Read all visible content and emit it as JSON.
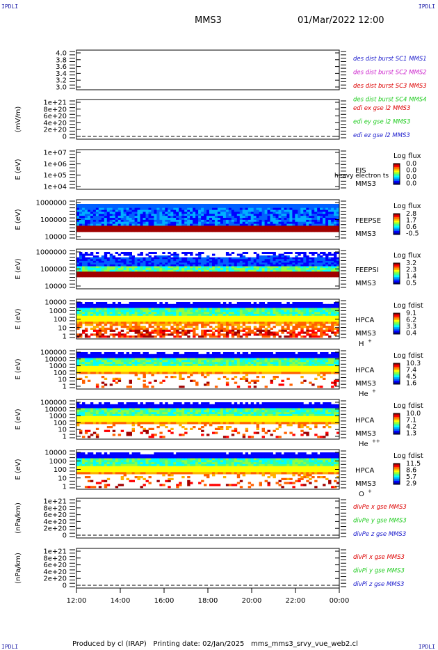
{
  "corner_label": "IPDLI",
  "header": {
    "spacecraft": "MMS3",
    "datetime": "01/Mar/2022 12:00"
  },
  "footer": {
    "produced_by": "Produced by cl (IRAP)",
    "printing_date": "Printing date: 02/Jan/2025",
    "file": "mms_mms3_srvy_vue_web2.cl"
  },
  "colors": {
    "red": "#dd0000",
    "green": "#22cc22",
    "blue": "#1a1acc",
    "magenta": "#cc22cc"
  },
  "chart_data": [
    {
      "type": "line",
      "id": "des-burst",
      "ylabel": "",
      "ylim": [
        2.9,
        4.1
      ],
      "yticks": [
        "4.0",
        "3.8",
        "3.6",
        "3.4",
        "3.2",
        "3.0"
      ],
      "legend": [
        {
          "name": "des dist burst SC1 MMS1",
          "color": "#1a1acc"
        },
        {
          "name": "des dist burst SC2 MMS2",
          "color": "#cc22cc"
        },
        {
          "name": "des dist burst SC3 MMS3",
          "color": "#dd0000"
        },
        {
          "name": "des dist burst SC4 MMS4",
          "color": "#22cc22"
        }
      ]
    },
    {
      "type": "line",
      "id": "edi-e",
      "ylabel": "(mV/m)",
      "ylim": [
        -2e+20,
        1.05e+21
      ],
      "yticks": [
        "1e+21",
        "8e+20",
        "6e+20",
        "4e+20",
        "2e+20",
        "0"
      ],
      "zero_line": true,
      "legend": [
        {
          "name": "edi ex gse l2 MMS3",
          "color": "#dd0000"
        },
        {
          "name": "edi ey gse l2 MMS3",
          "color": "#22cc22"
        },
        {
          "name": "edi ez gse l2 MMS3",
          "color": "#1a1acc"
        }
      ]
    },
    {
      "type": "heatmap",
      "id": "eis",
      "ylabel": "E (eV)",
      "yticks": [
        "1e+07",
        "1e+06",
        "1e+05",
        "1e+04"
      ],
      "instrument": [
        "EIS",
        "MMS3"
      ],
      "overlap_text": "heavy electron ts",
      "cbar_title": "Log flux",
      "cbar_ticks": [
        "0.0",
        "0.0",
        "0.0",
        "0.0"
      ],
      "empty": true
    },
    {
      "type": "heatmap",
      "id": "feepse",
      "ylabel": "E (eV)",
      "yticks": [
        "1000000",
        "100000",
        "10000"
      ],
      "instrument": [
        "FEEPSE",
        "MMS3"
      ],
      "cbar_title": "Log flux",
      "cbar_ticks": [
        "2.8",
        "1.7",
        "0.6",
        "-0.5"
      ]
    },
    {
      "type": "heatmap",
      "id": "feepsi",
      "ylabel": "E (eV)",
      "yticks": [
        "1000000",
        "100000",
        "10000"
      ],
      "instrument": [
        "FEEPSI",
        "MMS3"
      ],
      "cbar_title": "Log flux",
      "cbar_ticks": [
        "3.2",
        "2.3",
        "1.4",
        "0.5"
      ]
    },
    {
      "type": "heatmap",
      "id": "hpca-h",
      "ylabel": "E (eV)",
      "yticks": [
        "10000",
        "1000",
        "100",
        "10",
        "1"
      ],
      "instrument": [
        "HPCA",
        "MMS3"
      ],
      "species": "H",
      "species_sup": "+",
      "cbar_title": "Log fdist",
      "cbar_ticks": [
        "9.1",
        "6.2",
        "3.3",
        "0.4"
      ]
    },
    {
      "type": "heatmap",
      "id": "hpca-he",
      "ylabel": "E (eV)",
      "yticks": [
        "100000",
        "10000",
        "1000",
        "100",
        "10",
        "1"
      ],
      "instrument": [
        "HPCA",
        "MMS3"
      ],
      "species": "He",
      "species_sup": "+",
      "cbar_title": "Log fdist",
      "cbar_ticks": [
        "10.3",
        "7.4",
        "4.5",
        "1.6"
      ]
    },
    {
      "type": "heatmap",
      "id": "hpca-hepp",
      "ylabel": "E (eV)",
      "yticks": [
        "100000",
        "10000",
        "1000",
        "100",
        "10",
        "1"
      ],
      "instrument": [
        "HPCA",
        "MMS3"
      ],
      "species": "He",
      "species_sup": "++",
      "cbar_title": "Log fdist",
      "cbar_ticks": [
        "10.0",
        "7.1",
        "4.2",
        "1.3"
      ]
    },
    {
      "type": "heatmap",
      "id": "hpca-o",
      "ylabel": "E (eV)",
      "yticks": [
        "10000",
        "1000",
        "100",
        "10",
        "1"
      ],
      "instrument": [
        "HPCA",
        "MMS3"
      ],
      "species": "O",
      "species_sup": "+",
      "cbar_title": "Log fdist",
      "cbar_ticks": [
        "11.5",
        "8.6",
        "5.7",
        "2.9"
      ]
    },
    {
      "type": "line",
      "id": "divpe",
      "ylabel": "(nPa/km)",
      "ylim": [
        -2e+20,
        1.05e+21
      ],
      "yticks": [
        "1e+21",
        "8e+20",
        "6e+20",
        "4e+20",
        "2e+20",
        "0"
      ],
      "zero_line": true,
      "legend": [
        {
          "name": "divPe x gse MMS3",
          "color": "#dd0000"
        },
        {
          "name": "divPe y gse MMS3",
          "color": "#22cc22"
        },
        {
          "name": "divPe z gse MMS3",
          "color": "#1a1acc"
        }
      ]
    },
    {
      "type": "line",
      "id": "divpi",
      "ylabel": "(nPa/km)",
      "ylim": [
        -2e+20,
        1.05e+21
      ],
      "yticks": [
        "1e+21",
        "8e+20",
        "6e+20",
        "4e+20",
        "2e+20",
        "0"
      ],
      "zero_line": true,
      "legend": [
        {
          "name": "divPi x gse MMS3",
          "color": "#dd0000"
        },
        {
          "name": "divPi y gse MMS3",
          "color": "#22cc22"
        },
        {
          "name": "divPi z gse MMS3",
          "color": "#1a1acc"
        }
      ]
    }
  ],
  "time_axis": {
    "ticks": [
      "12:00",
      "14:00",
      "16:00",
      "18:00",
      "20:00",
      "22:00",
      "00:00"
    ]
  }
}
